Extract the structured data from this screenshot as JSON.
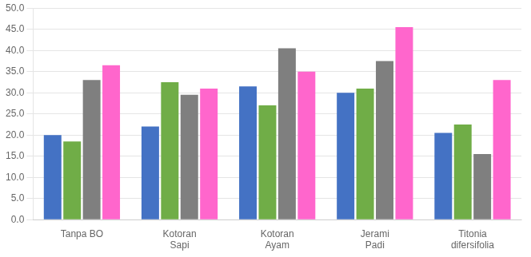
{
  "chart_data": {
    "type": "bar",
    "categories": [
      "Tanpa BO",
      "Kotoran\nSapi",
      "Kotoran\nAyam",
      "Jerami\nPadi",
      "Titonia\ndifersifolia"
    ],
    "series": [
      {
        "color": "#4472C4",
        "values": [
          20.0,
          22.0,
          31.5,
          30.0,
          20.5
        ]
      },
      {
        "color": "#70AD47",
        "values": [
          18.5,
          32.5,
          27.0,
          31.0,
          22.5
        ]
      },
      {
        "color": "#7F7F7F",
        "values": [
          33.0,
          29.5,
          40.5,
          37.5,
          15.5
        ]
      },
      {
        "color": "#FF66CC",
        "values": [
          36.5,
          31.0,
          35.0,
          45.5,
          33.0
        ]
      }
    ],
    "ylim": [
      0,
      50
    ],
    "yticks": [
      {
        "value": 0,
        "label": "0.0"
      },
      {
        "value": 5,
        "label": "5.0"
      },
      {
        "value": 10,
        "label": "10.0"
      },
      {
        "value": 15,
        "label": "15.0"
      },
      {
        "value": 20,
        "label": "20.0"
      },
      {
        "value": 25,
        "label": "25.0"
      },
      {
        "value": 30,
        "label": "30.0"
      },
      {
        "value": 35,
        "label": "35.0"
      },
      {
        "value": 40,
        "label": "40.0"
      },
      {
        "value": 45,
        "label": "45.0"
      },
      {
        "value": 50,
        "label": "50.0"
      }
    ],
    "grid": true
  }
}
